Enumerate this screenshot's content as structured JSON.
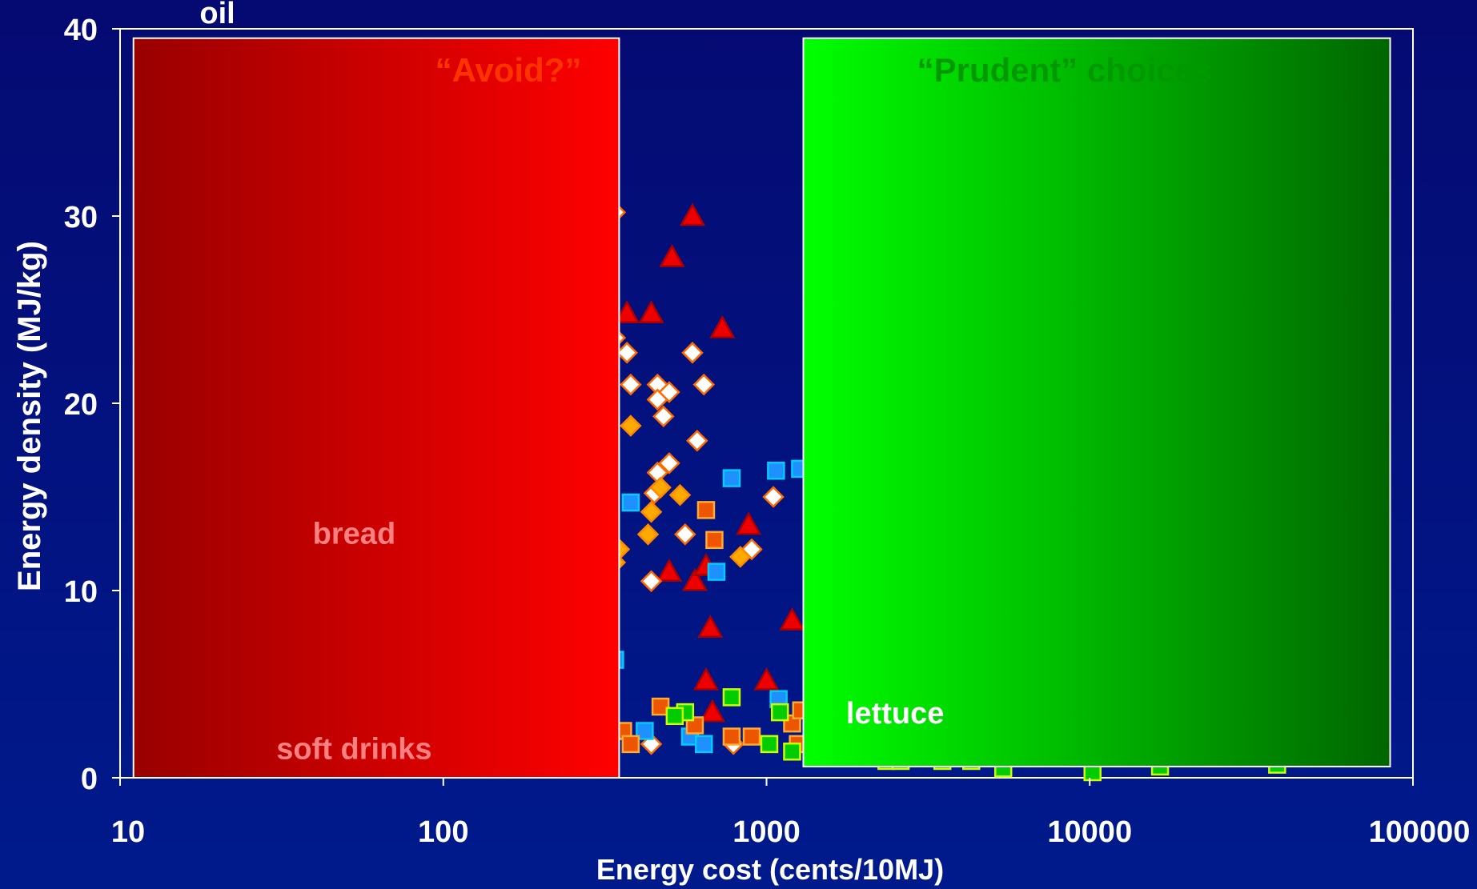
{
  "chart_data": {
    "type": "scatter",
    "title": "",
    "xlabel": "Energy cost (cents/10MJ)",
    "ylabel": "Energy density (MJ/kg)",
    "x_scale": "log",
    "xlim": [
      10,
      100000
    ],
    "ylim": [
      0,
      40
    ],
    "x_ticks": [
      10,
      100,
      1000,
      10000,
      100000
    ],
    "x_tick_labels": [
      "10",
      "100",
      "1000",
      "10000",
      "100000"
    ],
    "y_ticks": [
      0,
      10,
      20,
      30,
      40
    ],
    "y_tick_labels": [
      "0",
      "10",
      "20",
      "30",
      "40"
    ],
    "grid": false,
    "legend": "none",
    "regions": [
      {
        "label": "“Avoid?”",
        "x_range": [
          11,
          350
        ],
        "y_range": [
          0,
          39.5
        ],
        "color_from": "#990000",
        "color_to": "#ff0000",
        "label_color": "#ff3300"
      },
      {
        "label": "“Prudent” choices",
        "x_range": [
          1300,
          85000
        ],
        "y_range": [
          0.6,
          39.5
        ],
        "color_from": "#00ff00",
        "color_to": "#006600",
        "label_color": "#009900"
      }
    ],
    "annotations": [
      {
        "text": "oil",
        "x": 20,
        "y": 40.3,
        "color": "#ffffff"
      },
      {
        "text": "bread",
        "x": 53,
        "y": 12.5,
        "color": "#ff8080"
      },
      {
        "text": "soft drinks",
        "x": 53,
        "y": 1.0,
        "color": "#ff8080"
      },
      {
        "text": "lettuce",
        "x": 2500,
        "y": 2.9,
        "color": "#ffffff"
      }
    ],
    "series": [
      {
        "marker": "triangle",
        "fill": "#ee0000",
        "stroke": "#aa0000",
        "points": [
          [
            590,
            30
          ],
          [
            510,
            27.8
          ],
          [
            370,
            24.8
          ],
          [
            440,
            24.8
          ],
          [
            730,
            24
          ],
          [
            880,
            13.5
          ],
          [
            500,
            11
          ],
          [
            600,
            10.5
          ],
          [
            650,
            11.3
          ],
          [
            670,
            8
          ],
          [
            650,
            5.2
          ],
          [
            1000,
            5.2
          ],
          [
            680,
            3.5
          ],
          [
            1200,
            8.4
          ]
        ]
      },
      {
        "marker": "diamond",
        "fill": "#ffffff",
        "stroke": "#ff6a00",
        "points": [
          [
            340,
            30.2
          ],
          [
            340,
            23.5
          ],
          [
            370,
            22.7
          ],
          [
            380,
            21
          ],
          [
            460,
            21
          ],
          [
            460,
            20.2
          ],
          [
            500,
            20.6
          ],
          [
            480,
            19.3
          ],
          [
            590,
            22.7
          ],
          [
            640,
            21
          ],
          [
            610,
            18
          ],
          [
            500,
            16.8
          ],
          [
            460,
            16.3
          ],
          [
            450,
            15.2
          ],
          [
            560,
            13
          ],
          [
            440,
            10.5
          ],
          [
            900,
            12.2
          ],
          [
            1050,
            15
          ],
          [
            440,
            1.8
          ],
          [
            790,
            1.8
          ]
        ]
      },
      {
        "marker": "diamond",
        "fill": "#ffaa00",
        "stroke": "#ff8800",
        "points": [
          [
            380,
            18.8
          ],
          [
            470,
            15.5
          ],
          [
            440,
            14.2
          ],
          [
            540,
            15.1
          ],
          [
            430,
            13
          ],
          [
            350,
            12.2
          ],
          [
            340,
            11.5
          ],
          [
            830,
            11.8
          ]
        ]
      },
      {
        "marker": "square",
        "fill": "#1e90ff",
        "stroke": "#00ccff",
        "points": [
          [
            380,
            14.7
          ],
          [
            780,
            16
          ],
          [
            1070,
            16.4
          ],
          [
            1270,
            16.5
          ],
          [
            700,
            11
          ],
          [
            340,
            6.3
          ],
          [
            1090,
            4.2
          ],
          [
            420,
            2.5
          ],
          [
            580,
            2.2
          ],
          [
            640,
            1.8
          ]
        ]
      },
      {
        "marker": "square",
        "fill": "#ee5500",
        "stroke": "#ffaa33",
        "points": [
          [
            650,
            14.3
          ],
          [
            690,
            12.7
          ],
          [
            470,
            3.8
          ],
          [
            360,
            2.5
          ],
          [
            380,
            1.8
          ],
          [
            600,
            2.8
          ],
          [
            780,
            2.2
          ],
          [
            900,
            2.2
          ],
          [
            1200,
            2.9
          ],
          [
            1280,
            3.6
          ],
          [
            1250,
            1.8
          ]
        ]
      },
      {
        "marker": "square",
        "fill": "#00cc00",
        "stroke": "#ccff00",
        "points": [
          [
            560,
            3.5
          ],
          [
            520,
            3.3
          ],
          [
            780,
            4.3
          ],
          [
            1100,
            3.5
          ],
          [
            1020,
            1.8
          ],
          [
            1200,
            1.4
          ],
          [
            2350,
            0.9
          ],
          [
            2600,
            0.9
          ],
          [
            3500,
            0.9
          ],
          [
            4300,
            0.9
          ],
          [
            5400,
            0.5
          ],
          [
            10200,
            0.3
          ],
          [
            16500,
            0.6
          ],
          [
            38000,
            0.7
          ]
        ]
      }
    ]
  }
}
